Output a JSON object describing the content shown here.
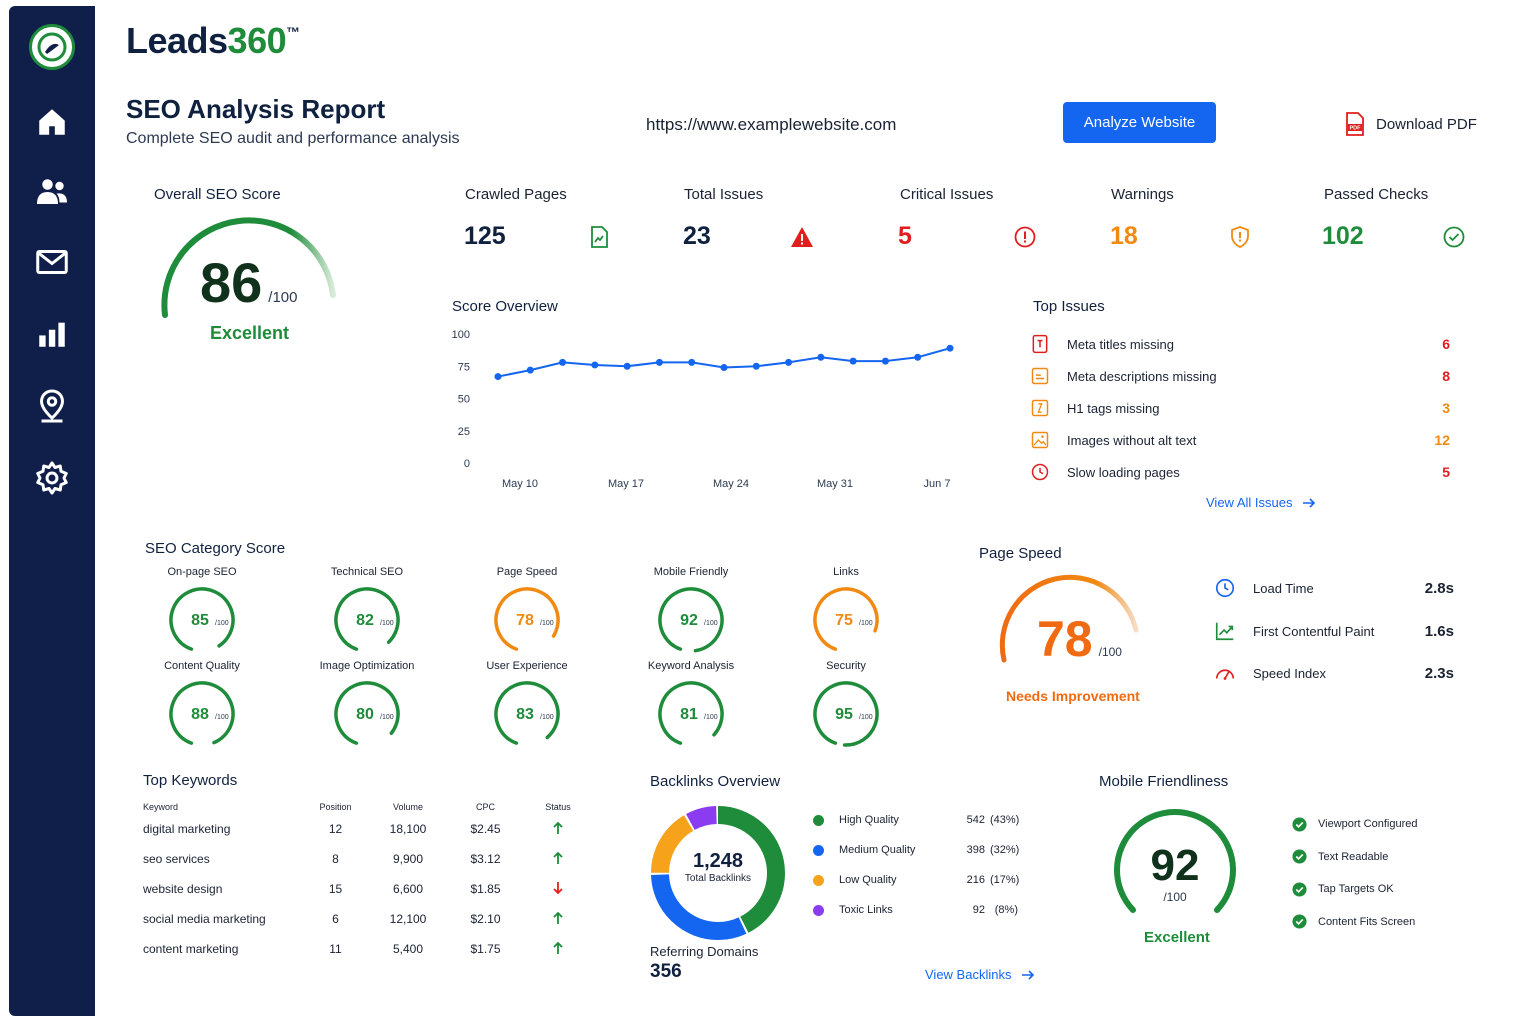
{
  "colors": {
    "navy": "#0f1f4a",
    "green": "#1e8c3a",
    "blue": "#1466f0",
    "red": "#e01e1e",
    "orange": "#f08a12",
    "purple": "#8b3cf0"
  },
  "brand": {
    "name": "Leads",
    "num": "360",
    "tm": "™"
  },
  "sidebar": {
    "items": [
      "home-icon",
      "users-icon",
      "mail-icon",
      "bar-chart-icon",
      "location-icon",
      "settings-icon"
    ]
  },
  "header": {
    "title": "SEO Analysis Report",
    "subtitle": "Complete SEO audit and performance analysis",
    "url": "https://www.examplewebsite.com",
    "analyze_label": "Analyze Website",
    "pdf_label": "Download PDF"
  },
  "overall": {
    "label": "Overall SEO Score",
    "score": "86",
    "max": "/100",
    "rating": "Excellent",
    "value": 86
  },
  "stats": [
    {
      "label": "Crawled Pages",
      "value": "125",
      "color": "#10213f",
      "icon": "document-icon"
    },
    {
      "label": "Total Issues",
      "value": "23",
      "color": "#10213f",
      "icon": "warning-icon"
    },
    {
      "label": "Critical Issues",
      "value": "5",
      "color": "#e01e1e",
      "icon": "alert-circle-icon"
    },
    {
      "label": "Warnings",
      "value": "18",
      "color": "#f08a12",
      "icon": "shield-icon"
    },
    {
      "label": "Passed Checks",
      "value": "102",
      "color": "#1e8c3a",
      "icon": "check-circle-icon"
    }
  ],
  "chart_data": {
    "type": "line",
    "title": "Score Overview",
    "x_ticks": [
      "May 10",
      "May 17",
      "May 24",
      "May 31",
      "Jun 7"
    ],
    "y_ticks": [
      "100",
      "75",
      "50",
      "25",
      "0"
    ],
    "ylim": [
      0,
      100
    ],
    "values": [
      67,
      72,
      78,
      76,
      75,
      78,
      78,
      74,
      75,
      78,
      82,
      79,
      79,
      82,
      89
    ],
    "grid": false
  },
  "top_issues": {
    "title": "Top Issues",
    "items": [
      {
        "label": "Meta titles missing",
        "count": "6",
        "color": "#e01e1e"
      },
      {
        "label": "Meta descriptions missing",
        "count": "8",
        "color": "#e01e1e"
      },
      {
        "label": "H1 tags missing",
        "count": "3",
        "color": "#f08a12"
      },
      {
        "label": "Images without alt text",
        "count": "12",
        "color": "#f08a12"
      },
      {
        "label": "Slow loading pages",
        "count": "5",
        "color": "#e01e1e"
      }
    ],
    "link": "View All Issues"
  },
  "categories": {
    "title": "SEO Category Score",
    "items": [
      {
        "name": "On-page SEO",
        "score": "85",
        "value": 85,
        "color": "#1e8c3a"
      },
      {
        "name": "Technical SEO",
        "score": "82",
        "value": 82,
        "color": "#1e8c3a"
      },
      {
        "name": "Page Speed",
        "score": "78",
        "value": 78,
        "color": "#f08a12"
      },
      {
        "name": "Mobile Friendly",
        "score": "92",
        "value": 92,
        "color": "#1e8c3a"
      },
      {
        "name": "Links",
        "score": "75",
        "value": 75,
        "color": "#f08a12"
      },
      {
        "name": "Content Quality",
        "score": "88",
        "value": 88,
        "color": "#1e8c3a"
      },
      {
        "name": "Image Optimization",
        "score": "80",
        "value": 80,
        "color": "#1e8c3a"
      },
      {
        "name": "User Experience",
        "score": "83",
        "value": 83,
        "color": "#1e8c3a"
      },
      {
        "name": "Keyword Analysis",
        "score": "81",
        "value": 81,
        "color": "#1e8c3a"
      },
      {
        "name": "Security",
        "score": "95",
        "value": 95,
        "color": "#1e8c3a"
      }
    ],
    "max": "/100"
  },
  "page_speed": {
    "title": "Page Speed",
    "score": "78",
    "max": "/100",
    "rating": "Needs Improvement",
    "value": 78,
    "metrics": [
      {
        "label": "Load Time",
        "value": "2.8s",
        "icon": "clock-icon"
      },
      {
        "label": "First Contentful Paint",
        "value": "1.6s",
        "icon": "trend-up-icon"
      },
      {
        "label": "Speed Index",
        "value": "2.3s",
        "icon": "speedometer-icon"
      }
    ]
  },
  "keywords": {
    "title": "Top Keywords",
    "headers": [
      "Keyword",
      "Position",
      "Volume",
      "CPC",
      "Status"
    ],
    "rows": [
      {
        "keyword": "digital marketing",
        "position": "12",
        "volume": "18,100",
        "cpc": "$2.45",
        "status": "up"
      },
      {
        "keyword": "seo services",
        "position": "8",
        "volume": "9,900",
        "cpc": "$3.12",
        "status": "up"
      },
      {
        "keyword": "website design",
        "position": "15",
        "volume": "6,600",
        "cpc": "$1.85",
        "status": "down"
      },
      {
        "keyword": "social media marketing",
        "position": "6",
        "volume": "12,100",
        "cpc": "$2.10",
        "status": "up"
      },
      {
        "keyword": "content marketing",
        "position": "11",
        "volume": "5,400",
        "cpc": "$1.75",
        "status": "up"
      }
    ]
  },
  "backlinks": {
    "title": "Backlinks Overview",
    "total": "1,248",
    "total_label": "Total Backlinks",
    "items": [
      {
        "name": "High Quality",
        "value": "542",
        "pct": "(43%)",
        "share": 43,
        "color": "#1e8c3a"
      },
      {
        "name": "Medium Quality",
        "value": "398",
        "pct": "(32%)",
        "share": 32,
        "color": "#1466f0"
      },
      {
        "name": "Low Quality",
        "value": "216",
        "pct": "(17%)",
        "share": 17,
        "color": "#f6a21a"
      },
      {
        "name": "Toxic Links",
        "value": "92",
        "pct": "(8%)",
        "share": 8,
        "color": "#8b3cf0"
      }
    ],
    "referring_label": "Referring Domains",
    "referring_value": "356",
    "link": "View Backlinks"
  },
  "mobile": {
    "title": "Mobile Friendliness",
    "score": "92",
    "max": "/100",
    "rating": "Excellent",
    "value": 92,
    "checks": [
      "Viewport Configured",
      "Text Readable",
      "Tap Targets OK",
      "Content Fits Screen"
    ]
  }
}
